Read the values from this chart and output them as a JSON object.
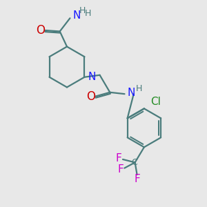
{
  "background_color": "#e8e8e8",
  "bond_color": "#4a7c7c",
  "N_color": "#1a1aff",
  "O_color": "#cc0000",
  "Cl_color": "#228B22",
  "F_color": "#cc00cc",
  "H_color": "#4a7c7c",
  "line_width": 1.6,
  "figsize": [
    3.0,
    3.0
  ],
  "dpi": 100,
  "xlim": [
    0,
    10
  ],
  "ylim": [
    0,
    10
  ]
}
